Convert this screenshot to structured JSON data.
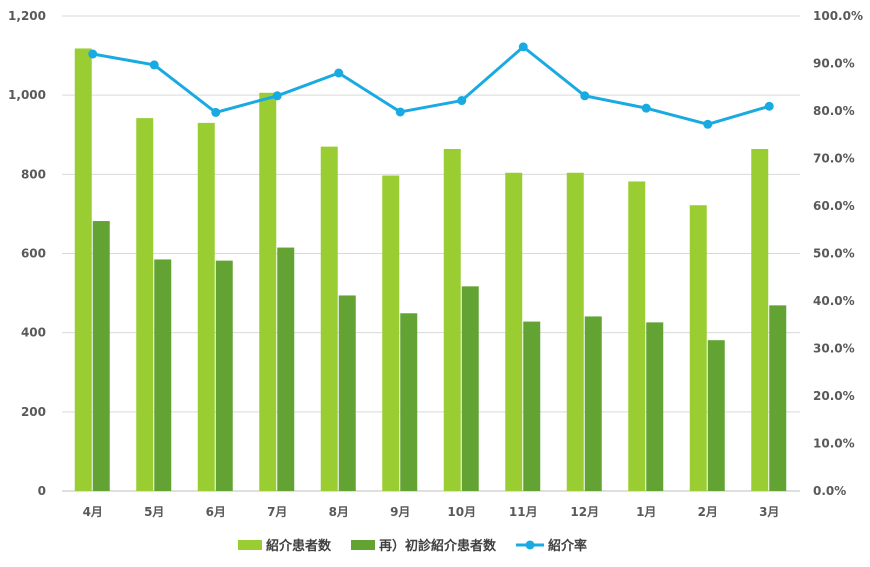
{
  "chart_data": {
    "type": "bar",
    "categories": [
      "4月",
      "5月",
      "6月",
      "7月",
      "8月",
      "9月",
      "10月",
      "11月",
      "12月",
      "1月",
      "2月",
      "3月"
    ],
    "series": [
      {
        "name": "紹介患者数",
        "type": "bar",
        "axis": "left",
        "color": "#9ACD32",
        "values": [
          1118,
          942,
          930,
          1006,
          870,
          797,
          864,
          804,
          804,
          782,
          722,
          864
        ]
      },
      {
        "name": "再）初診紹介患者数",
        "type": "bar",
        "axis": "left",
        "color": "#62A333",
        "values": [
          682,
          585,
          582,
          615,
          494,
          449,
          517,
          428,
          441,
          426,
          381,
          469
        ]
      },
      {
        "name": "紹介率",
        "type": "line",
        "axis": "right",
        "color": "#1AAAE2",
        "values": [
          92.0,
          89.7,
          79.7,
          83.2,
          88.0,
          79.8,
          82.2,
          93.5,
          83.2,
          80.6,
          77.2,
          81.0
        ]
      }
    ],
    "ylim_left": [
      0,
      1200
    ],
    "ylim_right": [
      0,
      100
    ],
    "left_ticks": [
      "0",
      "200",
      "400",
      "600",
      "800",
      "1,000",
      "1,200"
    ],
    "right_ticks": [
      "0.0%",
      "10.0%",
      "20.0%",
      "30.0%",
      "40.0%",
      "50.0%",
      "60.0%",
      "70.0%",
      "80.0%",
      "90.0%",
      "100.0%"
    ],
    "grid": true,
    "legend_position": "bottom"
  }
}
